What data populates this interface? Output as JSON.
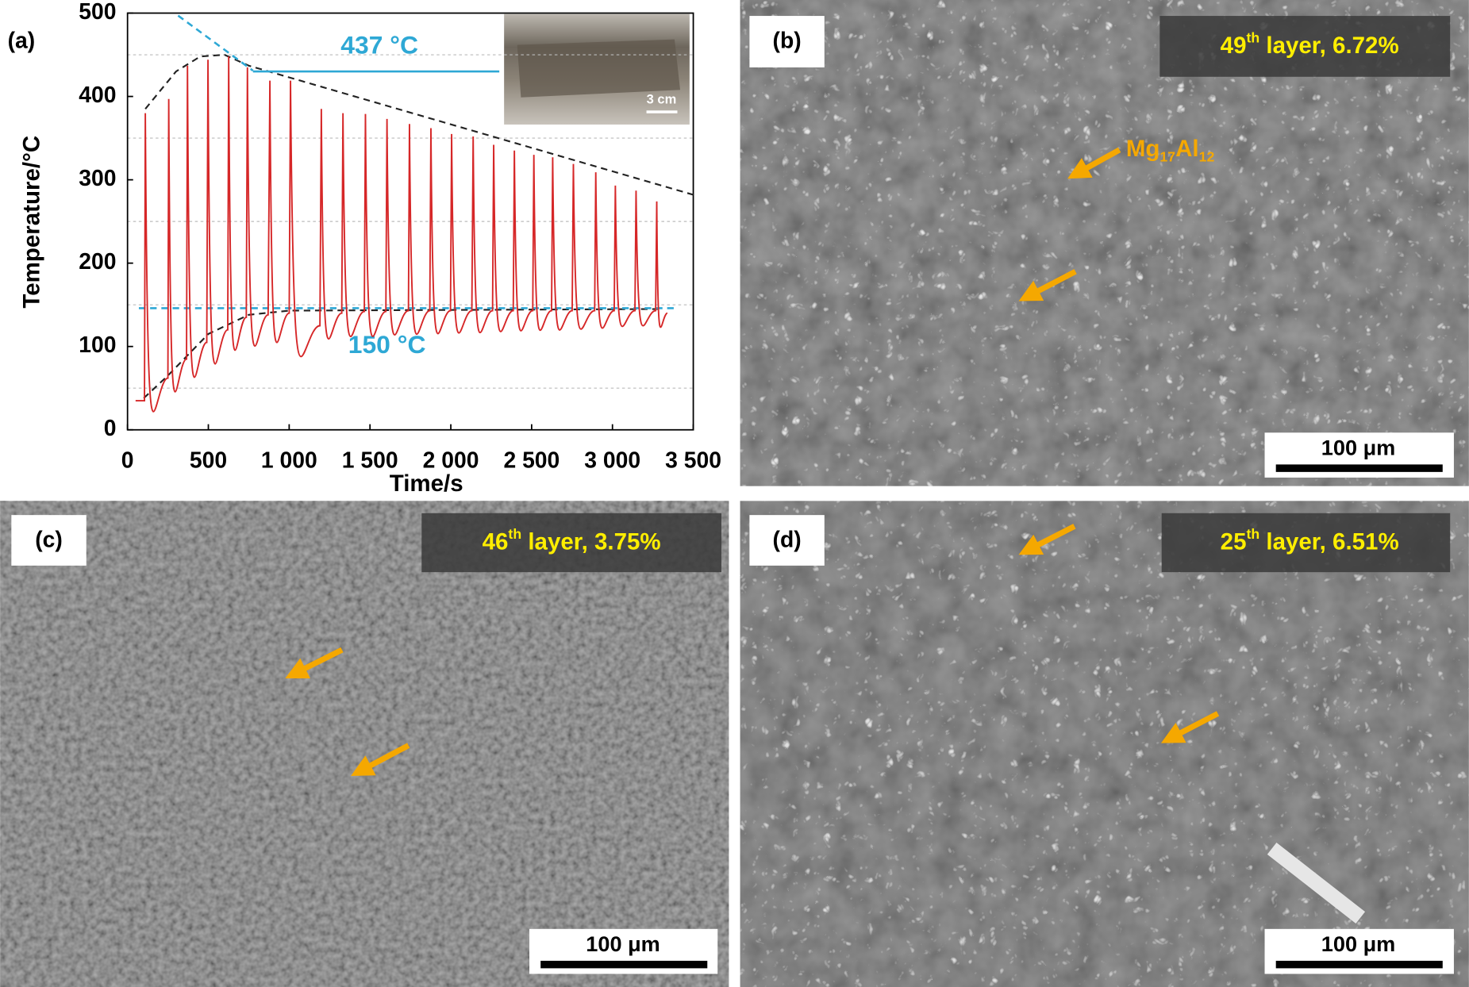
{
  "chart_data": {
    "type": "line",
    "panel_label": "(a)",
    "xlabel": "Time/s",
    "ylabel": "Temperature/°C",
    "xlim": [
      0,
      3500
    ],
    "ylim": [
      0,
      500
    ],
    "xticks": [
      0,
      500,
      {
        "value": 1000,
        "label": "1 000"
      },
      {
        "value": 1500,
        "label": "1 500"
      },
      {
        "value": 2000,
        "label": "2 000"
      },
      {
        "value": 2500,
        "label": "2 500"
      },
      {
        "value": 3000,
        "label": "3 000"
      },
      {
        "value": 3500,
        "label": "3 500"
      }
    ],
    "yticks": [
      0,
      100,
      200,
      300,
      400,
      500
    ],
    "minor_yticks": [
      50,
      150,
      250,
      350,
      450
    ],
    "grid": true,
    "series": [
      {
        "color": "#d62728",
        "x": [
          50,
          105,
          110,
          250,
          255,
          365,
          371,
          490,
          498,
          620,
          626,
          735,
          742,
          870,
          881,
          1000,
          1008,
          1190,
          1199,
          1325,
          1333,
          1465,
          1472,
          1598,
          1605,
          1738,
          1744,
          1870,
          1877,
          1998,
          2005,
          2130,
          2138,
          2258,
          2265,
          2386,
          2393,
          2507,
          2514,
          2623,
          2630,
          2751,
          2758,
          2890,
          2897,
          3011,
          3018,
          3139,
          3146,
          3267,
          3274,
          3340
        ],
        "values": [
          35,
          35,
          380,
          62,
          397,
          85,
          437,
          105,
          444,
          120,
          448,
          135,
          435,
          138,
          419,
          140,
          419,
          125,
          385,
          140,
          380,
          142,
          379,
          142,
          373,
          143,
          367,
          143,
          362,
          143,
          355,
          143,
          352,
          143,
          342,
          143,
          335,
          143,
          330,
          143,
          327,
          143,
          319,
          143,
          309,
          143,
          293,
          143,
          287,
          143,
          274,
          140
        ]
      }
    ],
    "reference_lines": [
      {
        "color": "#222222",
        "dash": true,
        "x": [
          110,
          300,
          450,
          600,
          750,
          3500
        ],
        "values": [
          385,
          430,
          448,
          450,
          437,
          282
        ]
      },
      {
        "color": "#222222",
        "dash": true,
        "x": [
          100,
          250,
          500,
          750,
          1000,
          3300
        ],
        "values": [
          38,
          65,
          115,
          138,
          143,
          145
        ]
      },
      {
        "color": "#2ea8d5",
        "dash": true,
        "x": [
          70,
          3380
        ],
        "values": [
          146,
          146
        ]
      },
      {
        "color": "#2ea8d5",
        "dash": false,
        "x": [
          776,
          2300
        ],
        "values": [
          430,
          430
        ]
      },
      {
        "color": "#2ea8d5",
        "dash": true,
        "x": [
          313,
          776
        ],
        "values": [
          497,
          431
        ]
      }
    ],
    "annotations": [
      "437 °C",
      "150 °C"
    ],
    "inset_scale": "3 cm"
  },
  "panels": [
    {
      "label": "(b)",
      "layer": {
        "number": "49",
        "suffix": "th",
        "rest": " layer, 6.72%"
      },
      "scale_bar": "100 μm",
      "phase_label": {
        "base1": "Mg",
        "sub1": "17",
        "base2": "Al",
        "sub2": "12"
      }
    },
    {
      "label": "(c)",
      "layer": {
        "number": "46",
        "suffix": "th",
        "rest": " layer, 3.75%"
      },
      "scale_bar": "100 μm"
    },
    {
      "label": "(d)",
      "layer": {
        "number": "25",
        "suffix": "th",
        "rest": " layer, 6.51%"
      },
      "scale_bar": "100 μm"
    }
  ]
}
